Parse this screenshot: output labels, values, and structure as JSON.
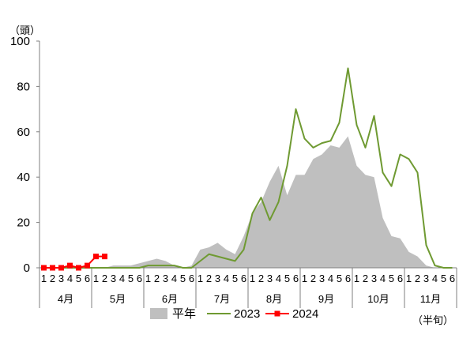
{
  "chart_data": {
    "type": "area",
    "y_unit": "（頭）",
    "x_unit": "（半旬）",
    "ylim": [
      0,
      100
    ],
    "yticks": [
      "0",
      "20",
      "40",
      "60",
      "80",
      "100"
    ],
    "months": [
      "4月",
      "5月",
      "6月",
      "7月",
      "8月",
      "9月",
      "10月",
      "11月"
    ],
    "periods": [
      "1",
      "2",
      "3",
      "4",
      "5",
      "6"
    ],
    "grid": false,
    "legend_position": "bottom",
    "series": [
      {
        "name": "平年",
        "type": "area",
        "color": "#bfbfbf",
        "values": [
          0,
          0,
          0,
          0,
          0,
          0,
          0,
          0,
          1,
          1,
          1,
          2,
          3,
          4,
          3,
          1,
          0,
          1,
          8,
          9,
          11,
          8,
          6,
          14,
          24,
          29,
          38,
          45,
          32,
          41,
          41,
          48,
          50,
          54,
          53,
          58,
          45,
          41,
          40,
          22,
          14,
          13,
          7,
          5,
          1,
          0,
          0,
          0
        ]
      },
      {
        "name": "2023",
        "type": "line",
        "color": "#6f9a32",
        "values": [
          0,
          0,
          0,
          0,
          0,
          0,
          0,
          0,
          0,
          0,
          0,
          0,
          1,
          1,
          1,
          1,
          0,
          0,
          3,
          6,
          5,
          4,
          3,
          8,
          24,
          31,
          21,
          29,
          45,
          70,
          57,
          53,
          55,
          56,
          64,
          88,
          63,
          53,
          67,
          42,
          36,
          50,
          48,
          42,
          10,
          1,
          0,
          0
        ]
      },
      {
        "name": "2024",
        "type": "line",
        "marker": "square",
        "color": "#ff0000",
        "values": [
          0,
          0,
          0,
          1,
          0,
          1,
          5,
          5
        ]
      }
    ]
  }
}
